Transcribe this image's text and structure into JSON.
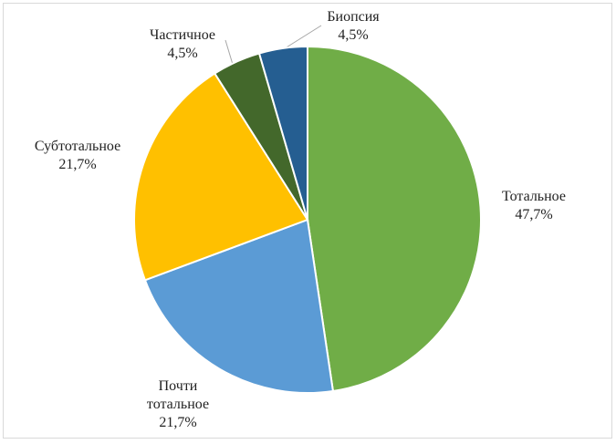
{
  "chart_data": {
    "type": "pie",
    "categories": [
      "Тотальное",
      "Почти тотальное",
      "Субтотальное",
      "Частичное",
      "Биопсия"
    ],
    "values": [
      47.7,
      21.7,
      21.7,
      4.5,
      4.5
    ],
    "value_labels": [
      "47,7%",
      "21,7%",
      "21,7%",
      "4,5%",
      "4,5%"
    ],
    "colors": [
      "#70ad47",
      "#5b9bd5",
      "#ffc000",
      "#43682b",
      "#255e91"
    ]
  }
}
